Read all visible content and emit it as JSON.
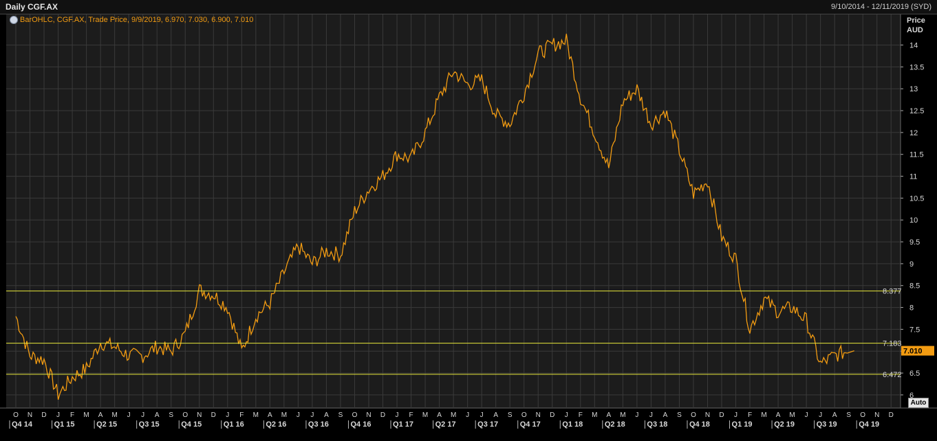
{
  "header": {
    "title": "Daily CGF.AX",
    "date_range": "9/10/2014 - 12/11/2019 (SYD)"
  },
  "legend": {
    "text": "BarOHLC, CGF.AX, Trade Price, 9/9/2019, 6.970, 7.030, 6.900, 7.010"
  },
  "axis": {
    "y_title_line1": "Price",
    "y_title_line2": "AUD",
    "auto_button": "Auto"
  },
  "colors": {
    "background": "#000000",
    "plot_bg": "#1c1c1c",
    "grid": "#3a3a3a",
    "series": "#f39c12",
    "hline": "#e8e83a",
    "last_price_bg": "#f39c12"
  },
  "chart_data": {
    "type": "line",
    "title": "Daily CGF.AX",
    "ylabel": "Price AUD",
    "ylim": [
      5.7,
      14.7
    ],
    "yticks": [
      6,
      6.5,
      7,
      7.5,
      8,
      8.5,
      9,
      9.5,
      10,
      10.5,
      11,
      11.5,
      12,
      12.5,
      13,
      13.5,
      14
    ],
    "ytick_labels": [
      "6",
      "6.5",
      "7",
      "7.5",
      "8",
      "8.5",
      "9",
      "9.5",
      "10",
      "10.5",
      "11",
      "11.5",
      "12",
      "12.5",
      "13",
      "13.5",
      "14"
    ],
    "x_month_ticks": [
      "O",
      "N",
      "D",
      "J",
      "F",
      "M",
      "A",
      "M",
      "J",
      "J",
      "A",
      "S",
      "O",
      "N",
      "D",
      "J",
      "F",
      "M",
      "A",
      "M",
      "J",
      "J",
      "A",
      "S",
      "O",
      "N",
      "D",
      "J",
      "F",
      "M",
      "A",
      "M",
      "J",
      "J",
      "A",
      "S",
      "O",
      "N",
      "D",
      "J",
      "F",
      "M",
      "A",
      "M",
      "J",
      "J",
      "A",
      "S",
      "O",
      "N",
      "D",
      "J",
      "F",
      "M",
      "A",
      "M",
      "J",
      "J",
      "A",
      "S",
      "O",
      "N",
      "D"
    ],
    "x_quarter_ticks": [
      "Q4 14",
      "Q1 15",
      "Q2 15",
      "Q3 15",
      "Q4 15",
      "Q1 16",
      "Q2 16",
      "Q3 16",
      "Q4 16",
      "Q1 17",
      "Q2 17",
      "Q3 17",
      "Q4 17",
      "Q1 18",
      "Q2 18",
      "Q3 18",
      "Q4 18",
      "Q1 19",
      "Q2 19",
      "Q3 19",
      "Q4 19"
    ],
    "grid": true,
    "horizontal_lines": [
      {
        "value": 8.377,
        "label": "8.377"
      },
      {
        "value": 7.183,
        "label": "7.183"
      },
      {
        "value": 6.472,
        "label": "6.472"
      }
    ],
    "last_price": {
      "value": 7.01,
      "label": "7.010"
    },
    "series": [
      {
        "dates": [
          "2014-10",
          "2014-11",
          "2014-12",
          "2015-01",
          "2015-02",
          "2015-03",
          "2015-04",
          "2015-05",
          "2015-06",
          "2015-07",
          "2015-08",
          "2015-09",
          "2015-10",
          "2015-11",
          "2015-12",
          "2016-01",
          "2016-02",
          "2016-03",
          "2016-04",
          "2016-05",
          "2016-06",
          "2016-07",
          "2016-08",
          "2016-09",
          "2016-10",
          "2016-11",
          "2016-12",
          "2017-01",
          "2017-02",
          "2017-03",
          "2017-04",
          "2017-05",
          "2017-06",
          "2017-07",
          "2017-08",
          "2017-09",
          "2017-10",
          "2017-11",
          "2017-12",
          "2018-01",
          "2018-02",
          "2018-03",
          "2018-04",
          "2018-05",
          "2018-06",
          "2018-07",
          "2018-08",
          "2018-09",
          "2018-10",
          "2018-11",
          "2018-12",
          "2019-01",
          "2019-02",
          "2019-03",
          "2019-04",
          "2019-05",
          "2019-06",
          "2019-07",
          "2019-08",
          "2019-09"
        ],
        "values": [
          7.8,
          6.9,
          6.8,
          6.0,
          6.4,
          6.6,
          7.2,
          7.1,
          6.9,
          6.9,
          7.1,
          7.0,
          7.4,
          8.4,
          8.3,
          8.0,
          7.0,
          7.8,
          8.1,
          8.8,
          9.4,
          9.0,
          9.3,
          9.2,
          10.2,
          10.7,
          11.0,
          11.5,
          11.4,
          12.0,
          12.8,
          13.4,
          13.1,
          13.2,
          12.4,
          12.2,
          12.9,
          13.8,
          14.0,
          14.1,
          12.8,
          12.0,
          11.2,
          12.7,
          13.0,
          12.2,
          12.5,
          11.6,
          10.6,
          10.9,
          9.6,
          9.1,
          7.5,
          8.2,
          7.9,
          8.0,
          7.7,
          6.7,
          6.9,
          7.01
        ]
      }
    ]
  }
}
